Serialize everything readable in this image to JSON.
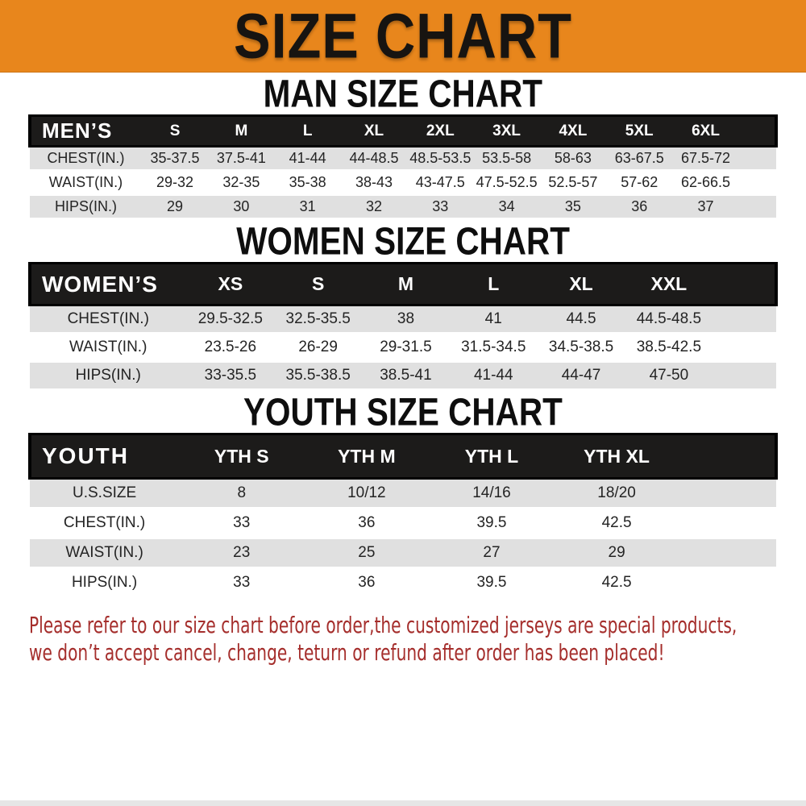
{
  "banner": {
    "title": "SIZE CHART"
  },
  "colors": {
    "banner_bg": "#E8861C",
    "header_bar": "#1C1B1A",
    "row_stripe": "#E0E0E0",
    "footer_text": "#A52E2C"
  },
  "sections": [
    {
      "title": "MAN SIZE CHART",
      "header_label": "MEN’S",
      "columns": [
        "S",
        "M",
        "L",
        "XL",
        "2XL",
        "3XL",
        "4XL",
        "5XL",
        "6XL"
      ],
      "rows": [
        {
          "label": "CHEST(IN.)",
          "values": [
            "35-37.5",
            "37.5-41",
            "41-44",
            "44-48.5",
            "48.5-53.5",
            "53.5-58",
            "58-63",
            "63-67.5",
            "67.5-72"
          ]
        },
        {
          "label": "WAIST(IN.)",
          "values": [
            "29-32",
            "32-35",
            "35-38",
            "38-43",
            "43-47.5",
            "47.5-52.5",
            "52.5-57",
            "57-62",
            "62-66.5"
          ]
        },
        {
          "label": "HIPS(IN.)",
          "values": [
            "29",
            "30",
            "31",
            "32",
            "33",
            "34",
            "35",
            "36",
            "37"
          ]
        }
      ]
    },
    {
      "title": "WOMEN SIZE CHART",
      "header_label": "WOMEN’S",
      "columns": [
        "XS",
        "S",
        "M",
        "L",
        "XL",
        "XXL"
      ],
      "rows": [
        {
          "label": "CHEST(IN.)",
          "values": [
            "29.5-32.5",
            "32.5-35.5",
            "38",
            "41",
            "44.5",
            "44.5-48.5"
          ]
        },
        {
          "label": "WAIST(IN.)",
          "values": [
            "23.5-26",
            "26-29",
            "29-31.5",
            "31.5-34.5",
            "34.5-38.5",
            "38.5-42.5"
          ]
        },
        {
          "label": "HIPS(IN.)",
          "values": [
            "33-35.5",
            "35.5-38.5",
            "38.5-41",
            "41-44",
            "44-47",
            "47-50"
          ]
        }
      ]
    },
    {
      "title": "YOUTH SIZE CHART",
      "header_label": "YOUTH",
      "columns": [
        "YTH S",
        "YTH M",
        "YTH L",
        "YTH XL"
      ],
      "rows": [
        {
          "label": "U.S.SIZE",
          "values": [
            "8",
            "10/12",
            "14/16",
            "18/20"
          ]
        },
        {
          "label": "CHEST(IN.)",
          "values": [
            "33",
            "36",
            "39.5",
            "42.5"
          ]
        },
        {
          "label": "WAIST(IN.)",
          "values": [
            "23",
            "25",
            "27",
            "29"
          ]
        },
        {
          "label": "HIPS(IN.)",
          "values": [
            "33",
            "36",
            "39.5",
            "42.5"
          ]
        }
      ]
    }
  ],
  "footer": {
    "line1": "Please refer to our size chart before order,the customized jerseys are special products,",
    "line2": "we don’t accept cancel, change, teturn or refund after order has been placed!"
  }
}
